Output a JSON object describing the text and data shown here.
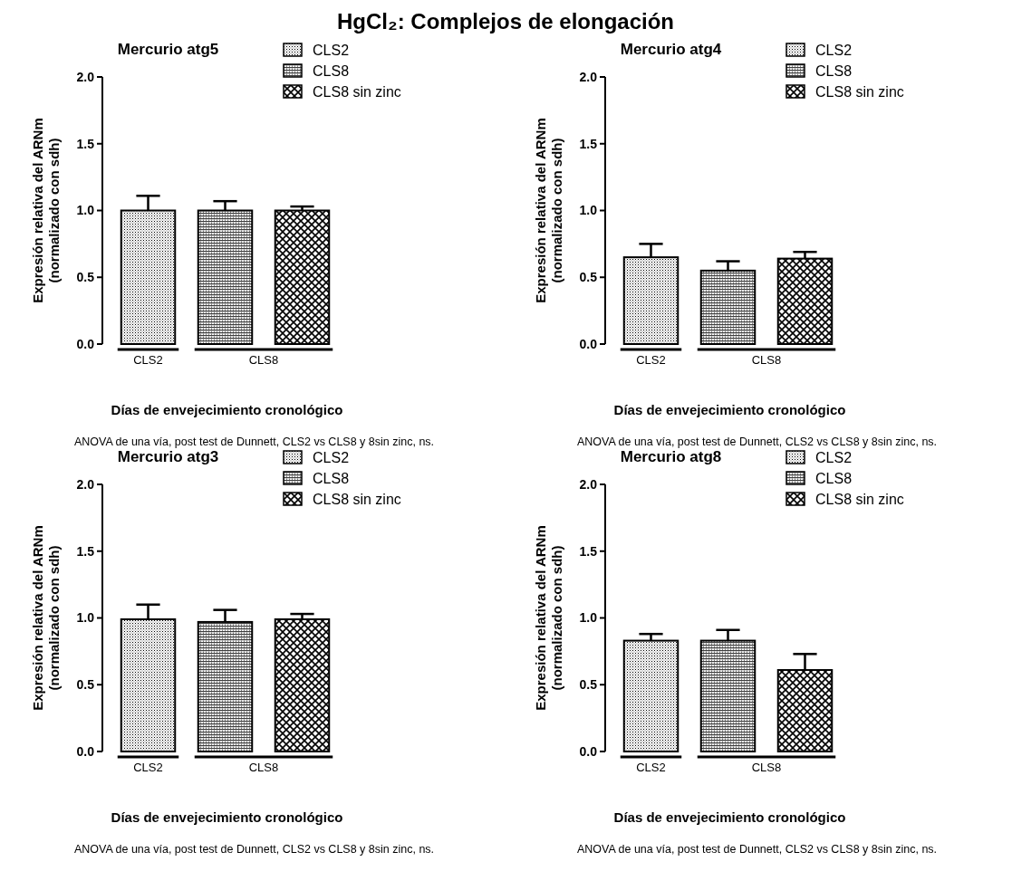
{
  "chart_data": [
    {
      "type": "bar",
      "title": "Mercurio atg5",
      "ylabel": "Expresión relativa del ARNm\n(normalizado con sdh)",
      "xlabel": "Días de envejecimiento cronológico",
      "annotations": [
        "HgCl₂: Complejos de elongación",
        "ANOVA de una vía, post test de Dunnett, CLS2 vs CLS8 y 8sin zinc, ns."
      ],
      "categories": [
        "CLS2",
        "CLS8"
      ],
      "ylim": [
        0,
        2
      ],
      "yticks": [
        {
          "value": 0,
          "label": "0.0"
        },
        {
          "value": 0.5,
          "label": "0.5"
        },
        {
          "value": 1,
          "label": "1.0"
        },
        {
          "value": 1.5,
          "label": "1.5"
        },
        {
          "value": 2,
          "label": "2.0"
        }
      ],
      "legend": "top right",
      "grid": false,
      "series": [
        {
          "name": "CLS2",
          "color": "#000000",
          "values": [
            1.0,
            null
          ],
          "errors": [
            [
              1.0,
              1.11
            ],
            null
          ]
        },
        {
          "name": "CLS8",
          "color": "#000000",
          "values": [
            null,
            1.0
          ],
          "errors": [
            null,
            [
              1.0,
              1.07
            ]
          ]
        },
        {
          "name": "CLS8 sin zinc",
          "color": "#000000",
          "values": [
            null,
            1.0
          ],
          "errors": [
            null,
            [
              1.0,
              1.03
            ]
          ]
        }
      ]
    },
    {
      "type": "bar",
      "title": "Mercurio atg4",
      "ylabel": "Expresión relativa del ARNm\n(normalizado con sdh)",
      "xlabel": "Días de envejecimiento cronológico",
      "annotations": [
        "ANOVA de una vía, post test de Dunnett, CLS2 vs CLS8 y 8sin zinc, ns."
      ],
      "categories": [
        "CLS2",
        "CLS8"
      ],
      "ylim": [
        0,
        2
      ],
      "yticks": [
        {
          "value": 0,
          "label": "0.0"
        },
        {
          "value": 0.5,
          "label": "0.5"
        },
        {
          "value": 1,
          "label": "1.0"
        },
        {
          "value": 1.5,
          "label": "1.5"
        },
        {
          "value": 2,
          "label": "2.0"
        }
      ],
      "legend": "top right",
      "grid": false,
      "series": [
        {
          "name": "CLS2",
          "color": "#000000",
          "values": [
            0.65,
            null
          ],
          "errors": [
            [
              0.65,
              0.75
            ],
            null
          ]
        },
        {
          "name": "CLS8",
          "color": "#000000",
          "values": [
            null,
            0.55
          ],
          "errors": [
            null,
            [
              0.55,
              0.62
            ]
          ]
        },
        {
          "name": "CLS8 sin zinc",
          "color": "#000000",
          "values": [
            null,
            0.64
          ],
          "errors": [
            null,
            [
              0.64,
              0.69
            ]
          ]
        }
      ]
    },
    {
      "type": "bar",
      "title": "Mercurio atg3",
      "ylabel": "Expresión relativa del ARNm\n(normalizado con sdh)",
      "xlabel": "Días de envejecimiento cronológico",
      "annotations": [
        "ANOVA de una vía, post test de Dunnett, CLS2 vs CLS8 y 8sin zinc, ns."
      ],
      "categories": [
        "CLS2",
        "CLS8"
      ],
      "ylim": [
        0,
        2
      ],
      "yticks": [
        {
          "value": 0,
          "label": "0.0"
        },
        {
          "value": 0.5,
          "label": "0.5"
        },
        {
          "value": 1,
          "label": "1.0"
        },
        {
          "value": 1.5,
          "label": "1.5"
        },
        {
          "value": 2,
          "label": "2.0"
        }
      ],
      "legend": "top right",
      "grid": false,
      "series": [
        {
          "name": "CLS2",
          "color": "#000000",
          "values": [
            0.99,
            null
          ],
          "errors": [
            [
              0.99,
              1.1
            ],
            null
          ]
        },
        {
          "name": "CLS8",
          "color": "#000000",
          "values": [
            null,
            0.97
          ],
          "errors": [
            null,
            [
              0.97,
              1.06
            ]
          ]
        },
        {
          "name": "CLS8 sin zinc",
          "color": "#000000",
          "values": [
            null,
            0.99
          ],
          "errors": [
            null,
            [
              0.99,
              1.03
            ]
          ]
        }
      ]
    },
    {
      "type": "bar",
      "title": "Mercurio atg8",
      "ylabel": "Expresión relativa del ARNm\n(normalizado con sdh)",
      "xlabel": "Días de envejecimiento cronológico",
      "annotations": [
        "ANOVA de una vía, post test de Dunnett, CLS2 vs CLS8 y 8sin zinc, ns."
      ],
      "categories": [
        "CLS2",
        "CLS8"
      ],
      "ylim": [
        0,
        2
      ],
      "yticks": [
        {
          "value": 0,
          "label": "0.0"
        },
        {
          "value": 0.5,
          "label": "0.5"
        },
        {
          "value": 1,
          "label": "1.0"
        },
        {
          "value": 1.5,
          "label": "1.5"
        },
        {
          "value": 2,
          "label": "2.0"
        }
      ],
      "legend": "top right",
      "grid": false,
      "series": [
        {
          "name": "CLS2",
          "color": "#000000",
          "values": [
            0.83,
            null
          ],
          "errors": [
            [
              0.83,
              0.88
            ],
            null
          ]
        },
        {
          "name": "CLS8",
          "color": "#000000",
          "values": [
            null,
            0.83
          ],
          "errors": [
            null,
            [
              0.83,
              0.91
            ]
          ]
        },
        {
          "name": "CLS8 sin zinc",
          "color": "#000000",
          "values": [
            null,
            0.61
          ],
          "errors": [
            null,
            [
              0.61,
              0.73
            ]
          ]
        }
      ]
    }
  ]
}
